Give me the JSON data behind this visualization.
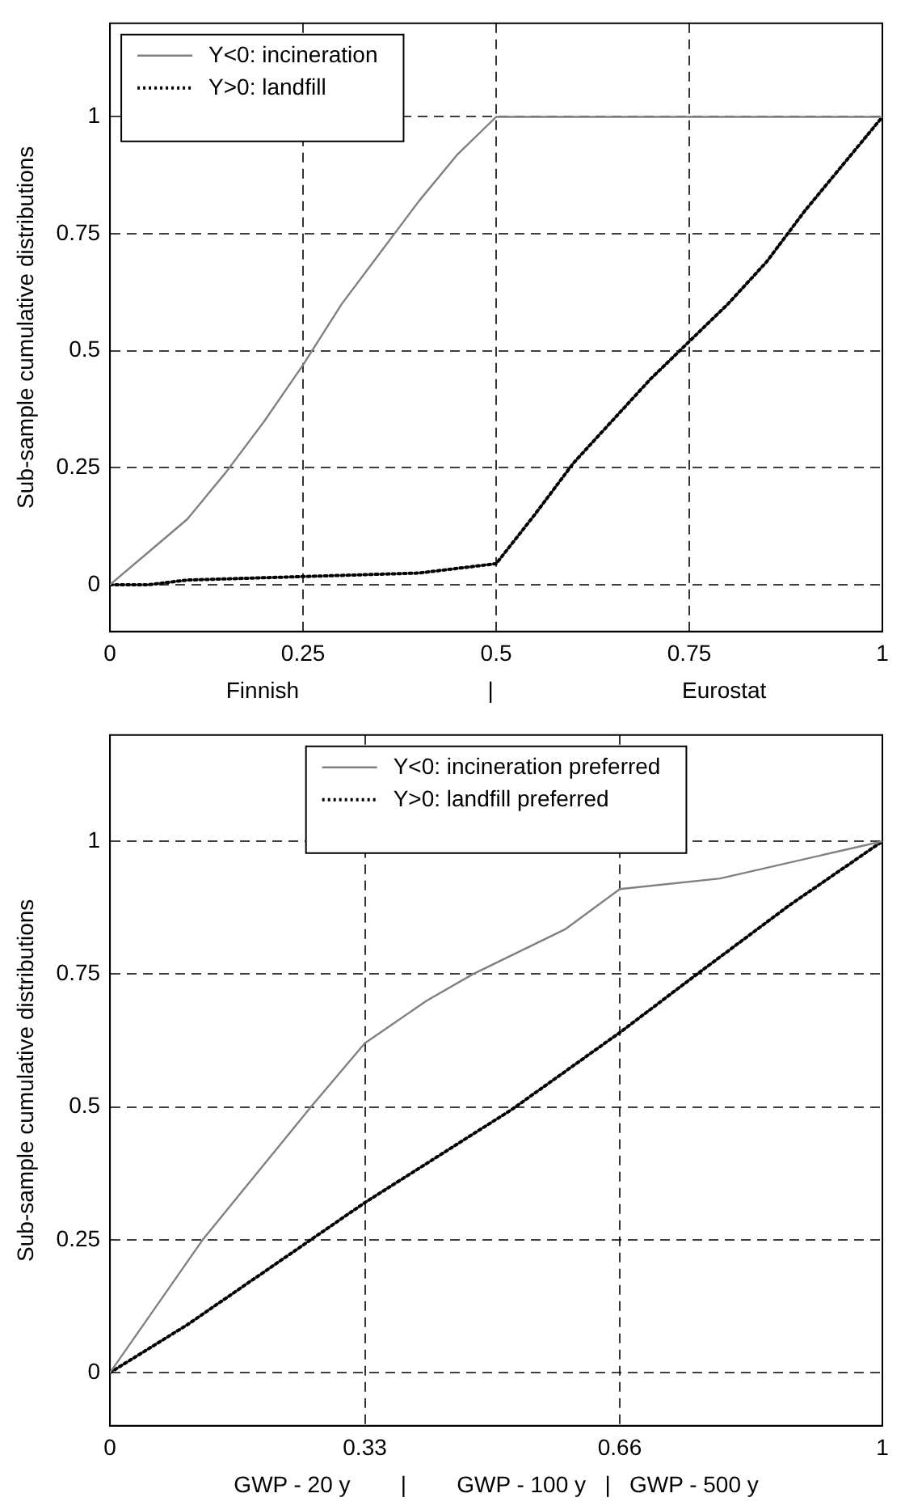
{
  "chart_data": [
    {
      "type": "line",
      "xlabel": "Finnish                              |                              Eurostat",
      "ylabel": "Sub-sample cumulative distributions",
      "xlim": [
        0,
        1
      ],
      "ylim": [
        -0.1,
        1.2
      ],
      "xticks": [
        0,
        0.25,
        0.5,
        0.75,
        1
      ],
      "yticks": [
        0,
        0.25,
        0.5,
        0.75,
        1
      ],
      "grid": true,
      "legend": "top left",
      "marker": "none",
      "series": [
        {
          "name": "Y<0: incineration",
          "color": "#808080",
          "line_style": "solid",
          "x": [
            0,
            0.05,
            0.1,
            0.15,
            0.2,
            0.25,
            0.3,
            0.35,
            0.4,
            0.45,
            0.5,
            1
          ],
          "values": [
            0,
            0.07,
            0.14,
            0.24,
            0.35,
            0.47,
            0.6,
            0.71,
            0.82,
            0.92,
            1,
            1
          ]
        },
        {
          "name": "Y>0: landfill",
          "color": "#000000",
          "line_style": "dotted",
          "x": [
            0,
            0.05,
            0.1,
            0.2,
            0.3,
            0.4,
            0.45,
            0.5,
            0.55,
            0.6,
            0.65,
            0.7,
            0.75,
            0.8,
            0.85,
            0.9,
            0.95,
            1
          ],
          "values": [
            0,
            0,
            0.01,
            0.015,
            0.02,
            0.025,
            0.035,
            0.045,
            0.15,
            0.26,
            0.35,
            0.44,
            0.52,
            0.6,
            0.69,
            0.8,
            0.9,
            1
          ]
        }
      ]
    },
    {
      "type": "line",
      "xlabel": "GWP - 20 y        |        GWP - 100 y   |   GWP - 500 y",
      "ylabel": "Sub-sample cumulative distributions",
      "xlim": [
        0,
        1
      ],
      "ylim": [
        -0.1,
        1.2
      ],
      "xticks": [
        0,
        0.33,
        0.66,
        1
      ],
      "yticks": [
        0,
        0.25,
        0.5,
        0.75,
        1
      ],
      "grid": true,
      "legend": "top",
      "marker": "none",
      "series": [
        {
          "name": "Y<0: incineration preferred",
          "color": "#808080",
          "line_style": "solid",
          "x": [
            0,
            0.12,
            0.26,
            0.33,
            0.41,
            0.47,
            0.59,
            0.66,
            0.79,
            1
          ],
          "values": [
            0,
            0.25,
            0.5,
            0.62,
            0.7,
            0.75,
            0.835,
            0.91,
            0.93,
            1
          ]
        },
        {
          "name": "Y>0: landfill preferred",
          "color": "#000000",
          "line_style": "dotted",
          "x": [
            0,
            0.1,
            0.2,
            0.33,
            0.52,
            0.66,
            0.76,
            0.88,
            1
          ],
          "values": [
            0,
            0.09,
            0.19,
            0.32,
            0.495,
            0.64,
            0.75,
            0.88,
            1
          ]
        }
      ]
    }
  ]
}
